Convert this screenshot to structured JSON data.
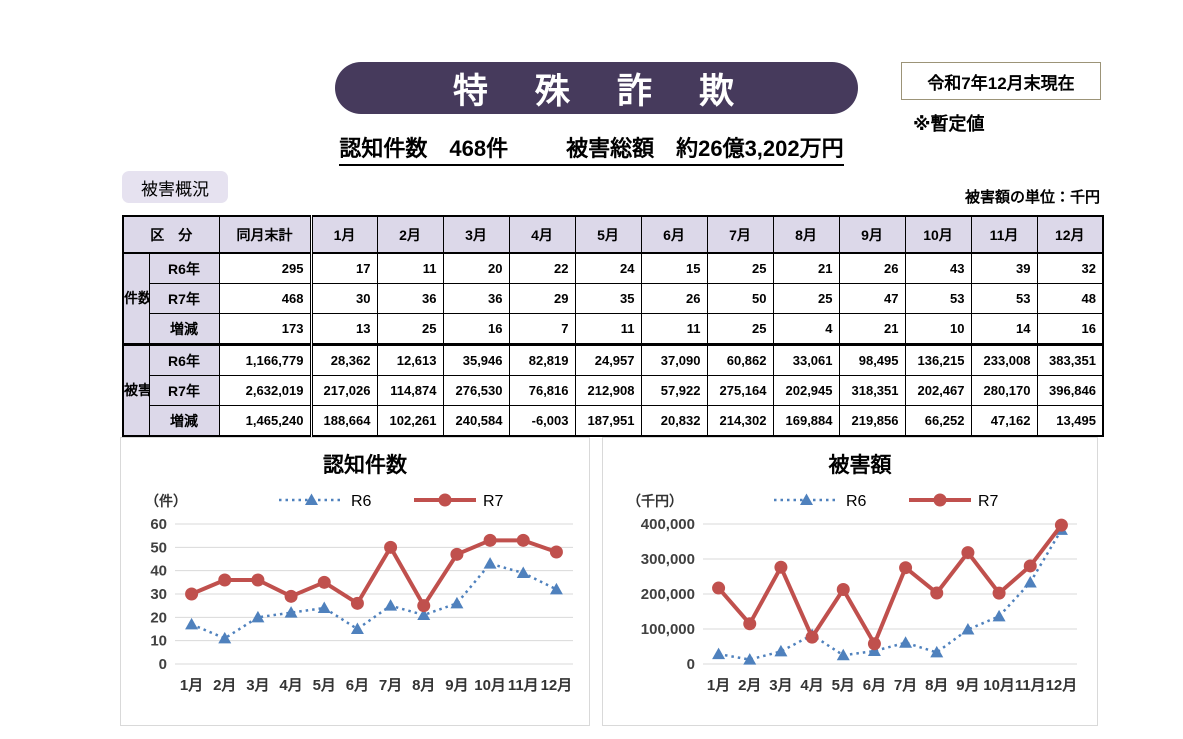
{
  "header": {
    "title": "特　殊　詐　欺",
    "date_box": "令和7年12月末現在",
    "provisional_note": "※暫定値",
    "summary_count": "認知件数　468件",
    "summary_amount": "被害総額　約26億3,202万円"
  },
  "section": {
    "badge": "被害概況",
    "unit_note": "被害額の単位：千円"
  },
  "table": {
    "corner_header": "区　分",
    "total_header": "同月末計",
    "months": [
      "1月",
      "2月",
      "3月",
      "4月",
      "5月",
      "6月",
      "7月",
      "8月",
      "9月",
      "10月",
      "11月",
      "12月"
    ],
    "groups": [
      {
        "label": "件数",
        "rows": [
          {
            "label": "R6年",
            "total": "295",
            "values": [
              "17",
              "11",
              "20",
              "22",
              "24",
              "15",
              "25",
              "21",
              "26",
              "43",
              "39",
              "32"
            ]
          },
          {
            "label": "R7年",
            "total": "468",
            "values": [
              "30",
              "36",
              "36",
              "29",
              "35",
              "26",
              "50",
              "25",
              "47",
              "53",
              "53",
              "48"
            ]
          },
          {
            "label": "増減",
            "total": "173",
            "values": [
              "13",
              "25",
              "16",
              "7",
              "11",
              "11",
              "25",
              "4",
              "21",
              "10",
              "14",
              "16"
            ]
          }
        ]
      },
      {
        "label": "被害額",
        "rows": [
          {
            "label": "R6年",
            "total": "1,166,779",
            "values": [
              "28,362",
              "12,613",
              "35,946",
              "82,819",
              "24,957",
              "37,090",
              "60,862",
              "33,061",
              "98,495",
              "136,215",
              "233,008",
              "383,351"
            ]
          },
          {
            "label": "R7年",
            "total": "2,632,019",
            "values": [
              "217,026",
              "114,874",
              "276,530",
              "76,816",
              "212,908",
              "57,922",
              "275,164",
              "202,945",
              "318,351",
              "202,467",
              "280,170",
              "396,846"
            ]
          },
          {
            "label": "増減",
            "total": "1,465,240",
            "values": [
              "188,664",
              "102,261",
              "240,584",
              "-6,003",
              "187,951",
              "20,832",
              "214,302",
              "169,884",
              "219,856",
              "66,252",
              "47,162",
              "13,495"
            ]
          }
        ]
      }
    ]
  },
  "chart_data": [
    {
      "type": "line",
      "title": "認知件数",
      "unit_label": "（件）",
      "categories": [
        "1月",
        "2月",
        "3月",
        "4月",
        "5月",
        "6月",
        "7月",
        "8月",
        "9月",
        "10月",
        "11月",
        "12月"
      ],
      "series": [
        {
          "name": "R6",
          "color": "#4F81BD",
          "line_style": "dotted",
          "marker": "triangle",
          "values": [
            17,
            11,
            20,
            22,
            24,
            15,
            25,
            21,
            26,
            43,
            39,
            32
          ]
        },
        {
          "name": "R7",
          "color": "#C0504D",
          "line_style": "solid",
          "marker": "circle",
          "values": [
            30,
            36,
            36,
            29,
            35,
            26,
            50,
            25,
            47,
            53,
            53,
            48
          ]
        }
      ],
      "ylim": [
        0,
        60
      ],
      "ytick_step": 10,
      "grid": true,
      "legend_position": "top",
      "grid_color": "#D9D9D9"
    },
    {
      "type": "line",
      "title": "被害額",
      "unit_label": "（千円）",
      "categories": [
        "1月",
        "2月",
        "3月",
        "4月",
        "5月",
        "6月",
        "7月",
        "8月",
        "9月",
        "10月",
        "11月",
        "12月"
      ],
      "series": [
        {
          "name": "R6",
          "color": "#4F81BD",
          "line_style": "dotted",
          "marker": "triangle",
          "values": [
            28362,
            12613,
            35946,
            82819,
            24957,
            37090,
            60862,
            33061,
            98495,
            136215,
            233008,
            383351
          ]
        },
        {
          "name": "R7",
          "color": "#C0504D",
          "line_style": "solid",
          "marker": "circle",
          "values": [
            217026,
            114874,
            276530,
            76816,
            212908,
            57922,
            275164,
            202945,
            318351,
            202467,
            280170,
            396846
          ]
        }
      ],
      "ylim": [
        0,
        400000
      ],
      "ytick_step": 100000,
      "grid": true,
      "legend_position": "top",
      "grid_color": "#D9D9D9"
    }
  ]
}
